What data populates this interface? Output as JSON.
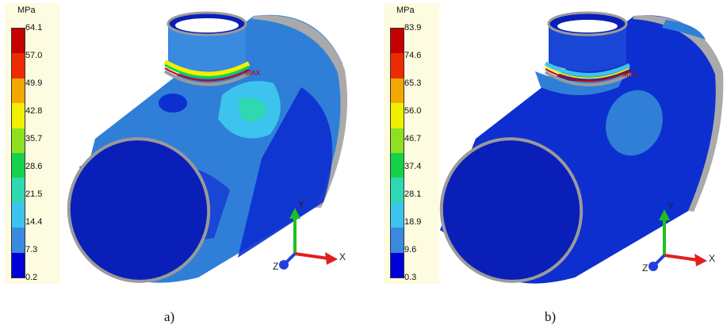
{
  "colors": {
    "scale": [
      "#0000d8",
      "#3a8ae0",
      "#3cc4ee",
      "#2ed8b0",
      "#14d24a",
      "#8ee020",
      "#f0f000",
      "#f2a800",
      "#ee2a00",
      "#c40000"
    ],
    "background": "#fdfbe0",
    "x_axis": "#e02020",
    "y_axis": "#20c020",
    "z_axis": "#2040e0"
  },
  "panels": [
    {
      "caption": "a)",
      "legend_unit": "MPa",
      "legend_values": [
        "64.1",
        "57.0",
        "49.9",
        "42.8",
        "35.7",
        "28.6",
        "21.5",
        "14.4",
        "7.3",
        "0.2"
      ],
      "max_label": "MAX",
      "axes": {
        "x": "X",
        "y": "Y",
        "z": "Z"
      },
      "icons": [
        "pipe-tee-model-icon",
        "coordinate-axes-icon"
      ]
    },
    {
      "caption": "b)",
      "legend_unit": "MPa",
      "legend_values": [
        "83.9",
        "74.6",
        "65.3",
        "56.0",
        "46.7",
        "37.4",
        "28.1",
        "18.9",
        "9.6",
        "0.3"
      ],
      "max_label": "MAX",
      "axes": {
        "x": "X",
        "y": "Y",
        "z": "Z"
      },
      "icons": [
        "pipe-tee-model-icon",
        "coordinate-axes-icon"
      ]
    }
  ]
}
